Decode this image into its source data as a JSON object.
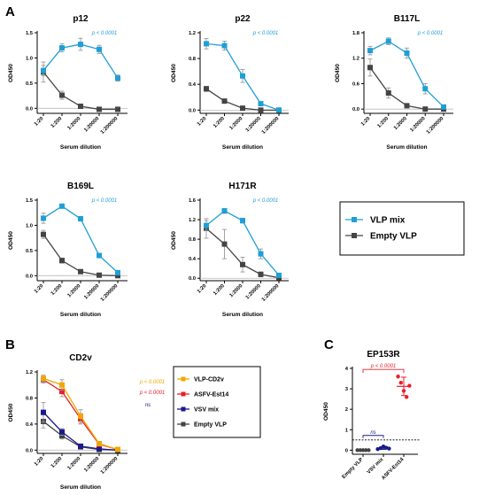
{
  "panel_letters": [
    "A",
    "B",
    "C"
  ],
  "colors": {
    "vlp_mix": "#1f9fd6",
    "empty_vlp": "#444444",
    "vlp_cd2v": "#f0a800",
    "asfv_est14": "#e8202a",
    "vsv_mix": "#1a1a8c",
    "errorbar": "#999999",
    "pvalue_a": "#1f9fd6",
    "pvalue_cd2v_1": "#f0a800",
    "pvalue_cd2v_2": "#e8202a",
    "ns_cd2v": "#1a1a8c",
    "bracket_c": "#e8202a",
    "bracket_ns": "#1a1a8c"
  },
  "legend_a": {
    "items": [
      {
        "label": "VLP mix",
        "color_key": "vlp_mix"
      },
      {
        "label": "Empty VLP",
        "color_key": "empty_vlp"
      }
    ]
  },
  "legend_b": {
    "items": [
      {
        "label": "VLP-CD2v",
        "color_key": "vlp_cd2v"
      },
      {
        "label": "ASFV-Est14",
        "color_key": "asfv_est14"
      },
      {
        "label": "VSV mix",
        "color_key": "vsv_mix"
      },
      {
        "label": "Empty VLP",
        "color_key": "empty_vlp"
      }
    ]
  },
  "chart_data": [
    {
      "id": "p12",
      "type": "line",
      "title": "p12",
      "xlabel": "Serum dilution",
      "ylabel": "OD450",
      "categories": [
        "1:20",
        "1:200",
        "1:2000",
        "1:20000",
        "1:200000"
      ],
      "ylim": [
        -0.1,
        1.5
      ],
      "yticks": [
        "0.0",
        "0.5",
        "1.0",
        "1.5"
      ],
      "annotation": "p < 0.0001",
      "annotation_color": "vlp_mix",
      "series": [
        {
          "name": "VLP mix",
          "values": [
            0.75,
            1.2,
            1.27,
            1.17,
            0.6
          ],
          "err": [
            0.1,
            0.08,
            0.12,
            0.08,
            0.06
          ],
          "color_key": "vlp_mix"
        },
        {
          "name": "Empty VLP",
          "values": [
            0.72,
            0.26,
            0.04,
            -0.02,
            -0.02
          ],
          "err": [
            0.2,
            0.08,
            0.02,
            0.01,
            0.01
          ],
          "color_key": "empty_vlp"
        }
      ]
    },
    {
      "id": "p22",
      "type": "line",
      "title": "p22",
      "xlabel": "Serum dilution",
      "ylabel": "OD450",
      "categories": [
        "1:20",
        "1:200",
        "1:2000",
        "1:20000",
        "1:200000"
      ],
      "ylim": [
        -0.05,
        1.2
      ],
      "yticks": [
        "0.0",
        "0.4",
        "0.8",
        "1.2"
      ],
      "annotation": "p < 0.0001",
      "annotation_color": "vlp_mix",
      "series": [
        {
          "name": "VLP mix",
          "values": [
            1.03,
            1.0,
            0.53,
            0.1,
            0.0
          ],
          "err": [
            0.08,
            0.07,
            0.1,
            0.03,
            0.01
          ],
          "color_key": "vlp_mix"
        },
        {
          "name": "Empty VLP",
          "values": [
            0.33,
            0.14,
            0.03,
            0.0,
            0.0
          ],
          "err": [
            0.04,
            0.03,
            0.01,
            0.01,
            0.01
          ],
          "color_key": "empty_vlp"
        }
      ]
    },
    {
      "id": "b117l",
      "type": "line",
      "title": "B117L",
      "xlabel": "Serum dilution",
      "ylabel": "OD450",
      "categories": [
        "1:20",
        "1:200",
        "1:2000",
        "1:20000",
        "1:200000"
      ],
      "ylim": [
        -0.1,
        1.8
      ],
      "yticks": [
        "0.0",
        "0.6",
        "1.2",
        "1.8"
      ],
      "annotation": "p < 0.0001",
      "annotation_color": "vlp_mix",
      "series": [
        {
          "name": "VLP mix",
          "values": [
            1.38,
            1.6,
            1.32,
            0.48,
            0.05
          ],
          "err": [
            0.1,
            0.08,
            0.12,
            0.12,
            0.04
          ],
          "color_key": "vlp_mix"
        },
        {
          "name": "Empty VLP",
          "values": [
            0.98,
            0.38,
            0.08,
            0.0,
            0.0
          ],
          "err": [
            0.2,
            0.12,
            0.03,
            0.01,
            0.01
          ],
          "color_key": "empty_vlp"
        }
      ]
    },
    {
      "id": "b169l",
      "type": "line",
      "title": "B169L",
      "xlabel": "Serum dilution",
      "ylabel": "OD450",
      "categories": [
        "1:20",
        "1:200",
        "1:2000",
        "1:20000",
        "1:200000"
      ],
      "ylim": [
        -0.1,
        1.5
      ],
      "yticks": [
        "0.0",
        "0.5",
        "1.0",
        "1.5"
      ],
      "annotation": "p < 0.0001",
      "annotation_color": "vlp_mix",
      "series": [
        {
          "name": "VLP mix",
          "values": [
            1.14,
            1.38,
            1.13,
            0.4,
            0.06
          ],
          "err": [
            0.1,
            0.03,
            0.04,
            0.03,
            0.04
          ],
          "color_key": "vlp_mix"
        },
        {
          "name": "Empty VLP",
          "values": [
            0.82,
            0.3,
            0.08,
            0.01,
            0.0
          ],
          "err": [
            0.08,
            0.05,
            0.02,
            0.01,
            0.01
          ],
          "color_key": "empty_vlp"
        }
      ]
    },
    {
      "id": "h171r",
      "type": "line",
      "title": "H171R",
      "xlabel": "Serum dilution",
      "ylabel": "OD450",
      "categories": [
        "1:20",
        "1:200",
        "1:2000",
        "1:20000",
        "1:200000"
      ],
      "ylim": [
        -0.05,
        1.6
      ],
      "yticks": [
        "0.0",
        "0.4",
        "0.8",
        "1.2",
        "1.6"
      ],
      "annotation": "p < 0.0001",
      "annotation_color": "vlp_mix",
      "series": [
        {
          "name": "VLP mix",
          "values": [
            1.08,
            1.38,
            1.18,
            0.5,
            0.06
          ],
          "err": [
            0.1,
            0.05,
            0.05,
            0.1,
            0.04
          ],
          "color_key": "vlp_mix"
        },
        {
          "name": "Empty VLP",
          "values": [
            1.02,
            0.7,
            0.28,
            0.08,
            0.01
          ],
          "err": [
            0.2,
            0.3,
            0.15,
            0.05,
            0.01
          ],
          "color_key": "empty_vlp"
        }
      ]
    },
    {
      "id": "cd2v",
      "type": "line",
      "title": "CD2v",
      "xlabel": "Serum dilution",
      "ylabel": "OD450",
      "categories": [
        "1:20",
        "1:200",
        "1:2000",
        "1:20000",
        "1:200000"
      ],
      "ylim": [
        -0.05,
        1.2
      ],
      "yticks": [
        "0.0",
        "0.4",
        "0.8",
        "1.2"
      ],
      "annotations": [
        {
          "text": "p < 0.0001",
          "color_key": "pvalue_cd2v_1"
        },
        {
          "text": "p < 0.0001",
          "color_key": "pvalue_cd2v_2"
        },
        {
          "text": "ns",
          "color_key": "ns_cd2v"
        }
      ],
      "series": [
        {
          "name": "VLP-CD2v",
          "values": [
            1.1,
            1.0,
            0.52,
            0.1,
            0.01
          ],
          "err": [
            0.05,
            0.08,
            0.1,
            0.03,
            0.01
          ],
          "color_key": "vlp_cd2v"
        },
        {
          "name": "ASFV-Est14",
          "values": [
            1.08,
            0.9,
            0.48,
            0.09,
            0.01
          ],
          "err": [
            0.05,
            0.08,
            0.08,
            0.03,
            0.01
          ],
          "color_key": "asfv_est14"
        },
        {
          "name": "VSV mix",
          "values": [
            0.58,
            0.28,
            0.06,
            0.02,
            0.0
          ],
          "err": [
            0.15,
            0.05,
            0.02,
            0.01,
            0.01
          ],
          "color_key": "vsv_mix"
        },
        {
          "name": "Empty VLP",
          "values": [
            0.44,
            0.22,
            0.05,
            0.01,
            0.0
          ],
          "err": [
            0.1,
            0.05,
            0.02,
            0.01,
            0.01
          ],
          "color_key": "empty_vlp"
        }
      ]
    },
    {
      "id": "ep153r",
      "type": "scatter",
      "title": "EP153R",
      "ylabel": "OD450",
      "categories": [
        "Empty VLP",
        "VSV mix",
        "ASFV-Est14"
      ],
      "ylim": [
        -0.2,
        4
      ],
      "yticks": [
        "0",
        "1",
        "2",
        "3",
        "4"
      ],
      "threshold": 0.5,
      "bracket_top": {
        "text": "p < 0.0001",
        "from": "Empty VLP",
        "to": "ASFV-Est14"
      },
      "bracket_ns": {
        "text": "ns",
        "from": "Empty VLP",
        "to": "VSV mix"
      },
      "groups": [
        {
          "name": "Empty VLP",
          "points": [
            0.0,
            0.0,
            0.0,
            0.0,
            0.0
          ],
          "color_key": "empty_vlp"
        },
        {
          "name": "VSV mix",
          "points": [
            0.05,
            0.1,
            0.18,
            0.12,
            0.08
          ],
          "mean": 0.1,
          "err": 0.06,
          "color_key": "vsv_mix"
        },
        {
          "name": "ASFV-Est14",
          "points": [
            3.6,
            3.3,
            2.9,
            2.6,
            3.15
          ],
          "mean": 3.12,
          "err": 0.45,
          "color_key": "asfv_est14"
        }
      ]
    }
  ]
}
